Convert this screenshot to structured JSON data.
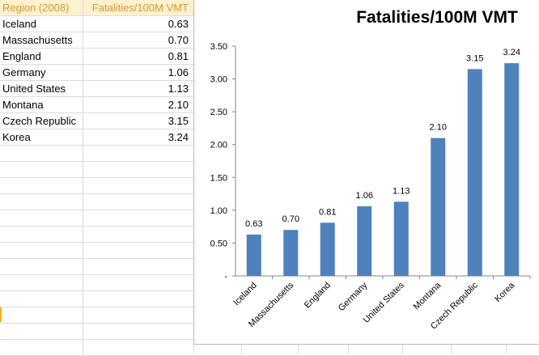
{
  "sheet": {
    "headers": [
      "Region (2008)",
      "Fatalities/100M VMT"
    ],
    "rows": [
      [
        "Iceland",
        "0.63"
      ],
      [
        "Massachusetts",
        "0.70"
      ],
      [
        "England",
        "0.81"
      ],
      [
        "Germany",
        "1.06"
      ],
      [
        "United States",
        "1.13"
      ],
      [
        "Montana",
        "2.10"
      ],
      [
        "Czech Republic",
        "3.15"
      ],
      [
        "Korea",
        "3.24"
      ]
    ]
  },
  "chart_data": {
    "type": "bar",
    "title": "Fatalities/100M VMT",
    "categories": [
      "Iceland",
      "Massachusetts",
      "England",
      "Germany",
      "United States",
      "Montana",
      "Czech Republic",
      "Korea"
    ],
    "values": [
      0.63,
      0.7,
      0.81,
      1.06,
      1.13,
      2.1,
      3.15,
      3.24
    ],
    "value_labels": [
      "0.63",
      "0.70",
      "0.81",
      "1.06",
      "1.13",
      "2.10",
      "3.15",
      "3.24"
    ],
    "ylim": [
      0,
      3.5
    ],
    "yticks": [
      0,
      0.5,
      1.0,
      1.5,
      2.0,
      2.5,
      3.0,
      3.5
    ],
    "ytick_labels": [
      "-",
      "0.50",
      "1.00",
      "1.50",
      "2.00",
      "2.50",
      "3.00",
      "3.50"
    ],
    "bar_color": "#4f81bd",
    "grid": false,
    "legend": "none"
  }
}
